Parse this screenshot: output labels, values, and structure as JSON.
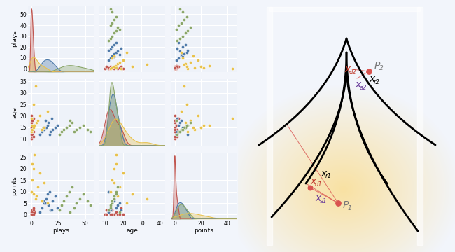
{
  "chart_data": {
    "type": "pairplot",
    "grid": true,
    "marker": "o",
    "variables": [
      {
        "name": "plays",
        "xlim": [
          -3,
          58
        ],
        "xticks": [
          0,
          25,
          50
        ],
        "ylim": [
          -3,
          58
        ],
        "yticks": [
          0,
          10,
          20,
          30,
          40,
          50
        ]
      },
      {
        "name": "age",
        "xlim": [
          7,
          43
        ],
        "xticks": [
          10,
          20,
          30,
          40
        ],
        "ylim": [
          7,
          36
        ],
        "yticks": [
          10,
          15,
          20,
          25,
          30,
          35
        ]
      },
      {
        "name": "points",
        "xlim": [
          -3,
          47
        ],
        "xticks": [
          0,
          20,
          40
        ],
        "ylim": [
          -2,
          27
        ],
        "yticks": [
          0,
          5,
          10,
          15,
          20,
          25
        ]
      }
    ],
    "series": [
      {
        "color": "#c0554f",
        "plays": [
          0,
          1,
          0,
          2,
          1,
          0,
          3,
          0,
          1,
          2,
          0,
          1,
          0,
          2,
          1
        ],
        "age": [
          10,
          11,
          12,
          13,
          14,
          15,
          16,
          17,
          18,
          19,
          20,
          12,
          13,
          11,
          14
        ],
        "points": [
          0,
          0,
          1,
          0,
          2,
          0,
          1,
          0,
          0,
          3,
          0,
          1,
          0,
          2,
          0
        ]
      },
      {
        "color": "#4c78a8",
        "plays": [
          8,
          10,
          12,
          14,
          15,
          16,
          18,
          20,
          22,
          24,
          13,
          17,
          19,
          11
        ],
        "age": [
          12,
          13,
          14,
          15,
          16,
          17,
          13,
          14,
          15,
          16,
          18,
          12,
          19,
          15
        ],
        "points": [
          1,
          3,
          5,
          7,
          9,
          4,
          2,
          6,
          8,
          3,
          5,
          10,
          2,
          6
        ]
      },
      {
        "color": "#e8c14a",
        "plays": [
          0,
          1,
          2,
          3,
          5,
          6,
          8,
          10,
          12,
          15,
          2,
          4,
          0,
          1
        ],
        "age": [
          13,
          14,
          15,
          16,
          17,
          18,
          20,
          14,
          15,
          22,
          25,
          33,
          19,
          16
        ],
        "points": [
          10,
          15,
          20,
          26,
          8,
          12,
          18,
          6,
          14,
          5,
          9,
          7,
          44,
          22
        ]
      },
      {
        "color": "#8aa668",
        "plays": [
          26,
          28,
          30,
          33,
          35,
          38,
          40,
          42,
          45,
          48,
          52,
          55,
          36
        ],
        "age": [
          12,
          13,
          14,
          15,
          16,
          17,
          13,
          14,
          15,
          16,
          14,
          13,
          18
        ],
        "points": [
          2,
          4,
          6,
          8,
          10,
          12,
          3,
          5,
          7,
          9,
          6,
          4,
          1
        ]
      }
    ]
  },
  "diagram": {
    "points": [
      {
        "base": "P",
        "sub": "1"
      },
      {
        "base": "P",
        "sub": "2"
      }
    ],
    "labels": [
      {
        "base": "x",
        "sub": "r1"
      },
      {
        "base": "x",
        "sub": "d1"
      },
      {
        "base": "x",
        "sub": "a1"
      },
      {
        "base": "x",
        "sub": "d2"
      },
      {
        "base": "x",
        "sub": "a2"
      },
      {
        "base": "x",
        "sub": "r2"
      }
    ]
  }
}
